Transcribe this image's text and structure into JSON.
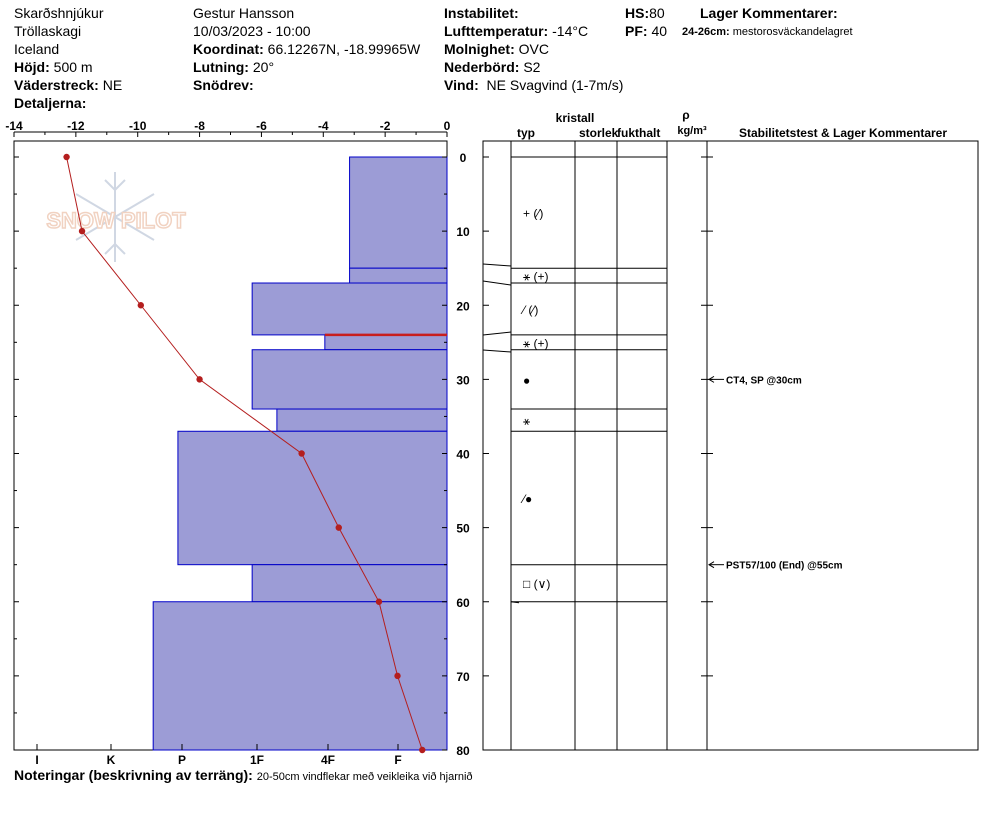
{
  "header": {
    "location": "Skarðshnjúkur",
    "region": "Tröllaskagi",
    "country": "Iceland",
    "elevation_label": "Höjd:",
    "elevation": "500 m",
    "aspect_label": "Väderstreck:",
    "aspect": "NE",
    "details_label": "Detaljerna:",
    "observer": "Gestur Hansson",
    "datetime": "10/03/2023 - 10:00",
    "coord_label": "Koordinat:",
    "coord": "66.12267N, -18.99965W",
    "slope_label": "Lutning:",
    "slope": "20°",
    "drift_label": "Snödrev:",
    "instability_label": "Instabilitet:",
    "airtemp_label": "Lufttemperatur:",
    "airtemp": "-14°C",
    "sky_label": "Molnighet:",
    "sky": "OVC",
    "precip_label": "Nederbörd:",
    "precip": "S2",
    "wind_label": "Vind:",
    "wind": "NE Svagvind (1-7m/s)",
    "hs_label": "HS:",
    "hs": "80",
    "pf_label": "PF:",
    "pf": "40",
    "layer_comments_label": "Lager Kommentarer:",
    "layer_comment_range": "24-26cm:",
    "layer_comment_text": "mestorosväckandelagret"
  },
  "footer": {
    "notes_label": "Noteringar (beskrivning av terräng):",
    "notes": "20-50cm vindflekar með veikleika við hjarnið"
  },
  "watermark": "SNOW PILOT",
  "table_headers": {
    "crystal": "kristall",
    "type": "typ",
    "size": "storlek",
    "moisture": "fukthalt",
    "rho": "ρ",
    "density": "kg/m³",
    "comments": "Stabilitetstest & Lager Kommentarer"
  },
  "colors": {
    "hardness_fill": "#9c9cd6",
    "hardness_stroke": "#0000c8",
    "temp_line": "#b41e1e",
    "weak_layer": "#c81e1e"
  },
  "chart_data": {
    "type": "snow_profile",
    "depth_axis": {
      "label": "",
      "ylim": [
        0,
        80
      ],
      "ticks": [
        0,
        10,
        20,
        30,
        40,
        50,
        60,
        70,
        80
      ]
    },
    "temperature_axis": {
      "xlim": [
        -14,
        0
      ],
      "ticks": [
        -14,
        -12,
        -10,
        -8,
        -6,
        -4,
        -2,
        0
      ]
    },
    "hardness_axis": {
      "ticks": [
        "I",
        "K",
        "P",
        "1F",
        "4F",
        "F"
      ]
    },
    "hardness_layers": [
      {
        "top": 0,
        "bottom": 15,
        "hardness": 3.15
      },
      {
        "top": 15,
        "bottom": 17,
        "hardness": 3.15
      },
      {
        "top": 17,
        "bottom": 24,
        "hardness": 6.3
      },
      {
        "top": 24,
        "bottom": 26,
        "hardness": 3.95
      },
      {
        "top": 26,
        "bottom": 34,
        "hardness": 6.3
      },
      {
        "top": 34,
        "bottom": 37,
        "hardness": 5.5
      },
      {
        "top": 37,
        "bottom": 55,
        "hardness": 8.7
      },
      {
        "top": 55,
        "bottom": 60,
        "hardness": 6.3
      },
      {
        "top": 60,
        "bottom": 80,
        "hardness": 9.5
      }
    ],
    "weak_layer_depth": 24,
    "temperature_profile": [
      {
        "depth": 0,
        "temp": -12.3
      },
      {
        "depth": 10,
        "temp": -11.8
      },
      {
        "depth": 20,
        "temp": -9.9
      },
      {
        "depth": 30,
        "temp": -8.0
      },
      {
        "depth": 40,
        "temp": -4.7
      },
      {
        "depth": 50,
        "temp": -3.5
      },
      {
        "depth": 60,
        "temp": -2.2
      },
      {
        "depth": 70,
        "temp": -1.6
      },
      {
        "depth": 80,
        "temp": -0.8
      }
    ],
    "layer_boundaries": [
      0,
      15,
      17,
      24,
      26,
      34,
      37,
      55,
      60
    ],
    "grain_symbols": [
      {
        "depth": 7.5,
        "symbol": "+ (⁄)"
      },
      {
        "depth": 16,
        "symbol": "⚹ (+)"
      },
      {
        "depth": 20.5,
        "symbol": "⁄ (⁄)"
      },
      {
        "depth": 25,
        "symbol": "⚹ (+)"
      },
      {
        "depth": 30,
        "symbol": "●"
      },
      {
        "depth": 35.5,
        "symbol": "⚹"
      },
      {
        "depth": 46,
        "symbol": "⁄●"
      },
      {
        "depth": 57.5,
        "symbol": "□ (∨)"
      }
    ],
    "stability_tests": [
      {
        "depth": 30,
        "label": "CT4, SP @30cm"
      },
      {
        "depth": 55,
        "label": "PST57/100 (End) @55cm"
      }
    ]
  }
}
